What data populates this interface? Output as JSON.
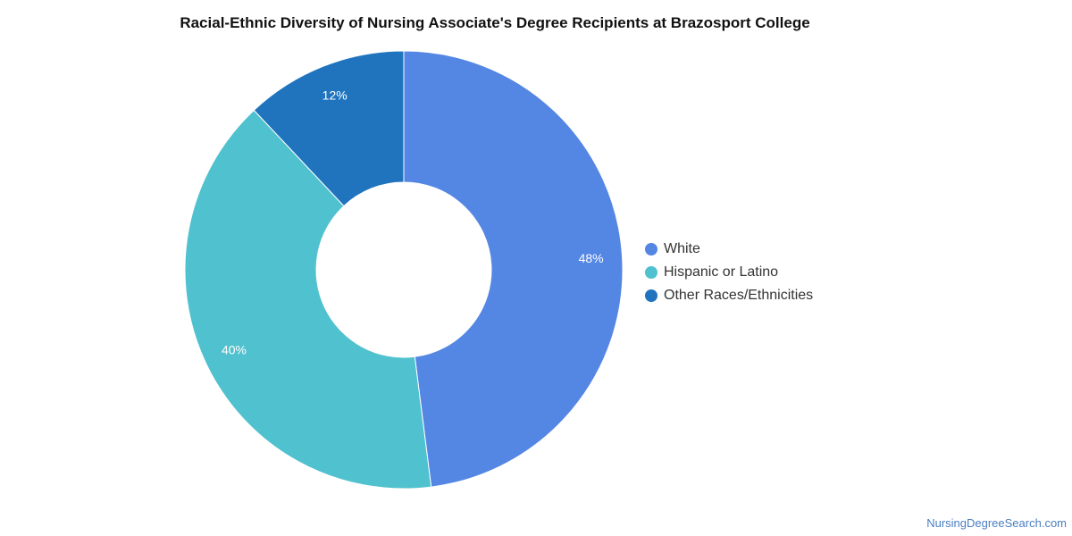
{
  "chart_data": {
    "type": "pie",
    "style": "donut",
    "title": "Racial-Ethnic Diversity of Nursing Associate's Degree Recipients at Brazosport College",
    "categories": [
      "White",
      "Hispanic or Latino",
      "Other Races/Ethnicities"
    ],
    "values": [
      48,
      40,
      12
    ],
    "labels": [
      "48%",
      "40%",
      "12%"
    ],
    "colors": [
      "#5486e3",
      "#50c1ce",
      "#1f74bd"
    ],
    "legend_position": "right"
  },
  "footer": {
    "source": "NursingDegreeSearch.com"
  }
}
